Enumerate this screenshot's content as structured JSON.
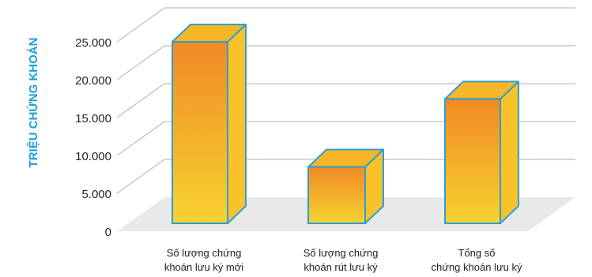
{
  "chart_data": {
    "type": "bar",
    "ylabel": "TRIỆU CHỨNG KHOÁN",
    "ylim": [
      0,
      25000
    ],
    "yticks": [
      "0",
      "5.000",
      "10.000",
      "15.000",
      "20.000",
      "25.000"
    ],
    "yticks_values": [
      0,
      5000,
      10000,
      15000,
      20000,
      25000
    ],
    "categories": [
      [
        "Số lượng chứng",
        "khoán lưu ký mới"
      ],
      [
        "Số lượng chứng",
        "khoán rút lưu ký"
      ],
      [
        "Tổng số",
        "chứng khoán lưu ký"
      ]
    ],
    "values": [
      25100,
      7800,
      17200
    ],
    "grid": true,
    "colors": {
      "grid": "#bfbfbf",
      "floor": "#e9e9e9",
      "bar_top_color": "#f08a24",
      "bar_bottom_color": "#f7d231",
      "bar_side": "#f9c22a",
      "bar_cap": "#f7b628",
      "bar_edge": "#2b9fd6"
    }
  }
}
